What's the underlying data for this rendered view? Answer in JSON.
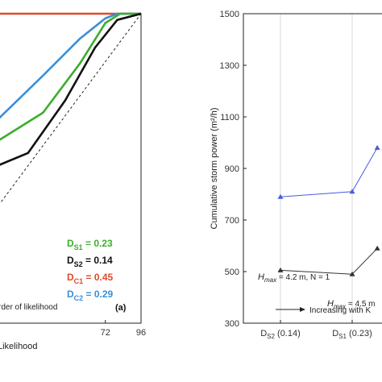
{
  "chart_data": [
    {
      "type": "line",
      "panel_label": "(a)",
      "xlabel": "Likelihood",
      "annotation": "rder of likelihood",
      "xticks": [
        "72",
        "96"
      ],
      "xlim": [
        0,
        96
      ],
      "ylim": [
        0,
        1
      ],
      "grid": false,
      "series": [
        {
          "color": "#e04b2a",
          "x": [
            0,
            96
          ],
          "y": [
            1.0,
            1.0
          ]
        },
        {
          "color": "#3a8fd8",
          "x": [
            0,
            30,
            55,
            72,
            80,
            96
          ],
          "y": [
            0.66,
            0.8,
            0.92,
            0.985,
            1.0,
            1.0
          ]
        },
        {
          "color": "#3cae2c",
          "x": [
            0,
            30,
            55,
            72,
            82,
            96
          ],
          "y": [
            0.59,
            0.68,
            0.84,
            0.97,
            1.0,
            1.0
          ]
        },
        {
          "color": "#111111",
          "x": [
            0,
            20,
            45,
            65,
            80,
            96
          ],
          "y": [
            0.51,
            0.55,
            0.72,
            0.89,
            0.98,
            1.0
          ]
        },
        {
          "color": "#222222",
          "dashed": true,
          "x": [
            0,
            96
          ],
          "y": [
            0.38,
            1.0
          ]
        }
      ],
      "legend": [
        {
          "main": "D",
          "sub": "S1",
          "value": " = 0.23",
          "color": "#3cae2c"
        },
        {
          "main": "D",
          "sub": "S2",
          "value": " = 0.14",
          "color": "#111111"
        },
        {
          "main": "D",
          "sub": "C1",
          "value": " = 0.45",
          "color": "#e04b2a"
        },
        {
          "main": "D",
          "sub": "C2",
          "value": " = 0.29",
          "color": "#3a8fd8"
        }
      ]
    },
    {
      "type": "line",
      "ylabel": "Cumulative storm power (m²/h)",
      "ylim": [
        300,
        1500
      ],
      "yticks": [
        300,
        500,
        700,
        900,
        1100,
        1300,
        1500
      ],
      "categories": [
        {
          "main": "D",
          "sub": "S2",
          "value": " (0.14)"
        },
        {
          "main": "D",
          "sub": "S1",
          "value": " (0.23)"
        }
      ],
      "arrow_text": "Increasing with K",
      "grid": true,
      "series": [
        {
          "color": "#4a5ae0",
          "marker": "triangle",
          "x": [
            0,
            1,
            1.35
          ],
          "y": [
            790,
            810,
            980
          ]
        },
        {
          "color": "#333333",
          "marker": "triangle",
          "x": [
            0,
            1,
            1.35
          ],
          "y": [
            505,
            490,
            590
          ]
        }
      ],
      "annotations": [
        {
          "h": "H",
          "hsub": "max",
          "text": " = 4.2 m, N = 1"
        },
        {
          "h": "H",
          "hsub": "max",
          "text": " = 4.5 m"
        }
      ]
    }
  ]
}
